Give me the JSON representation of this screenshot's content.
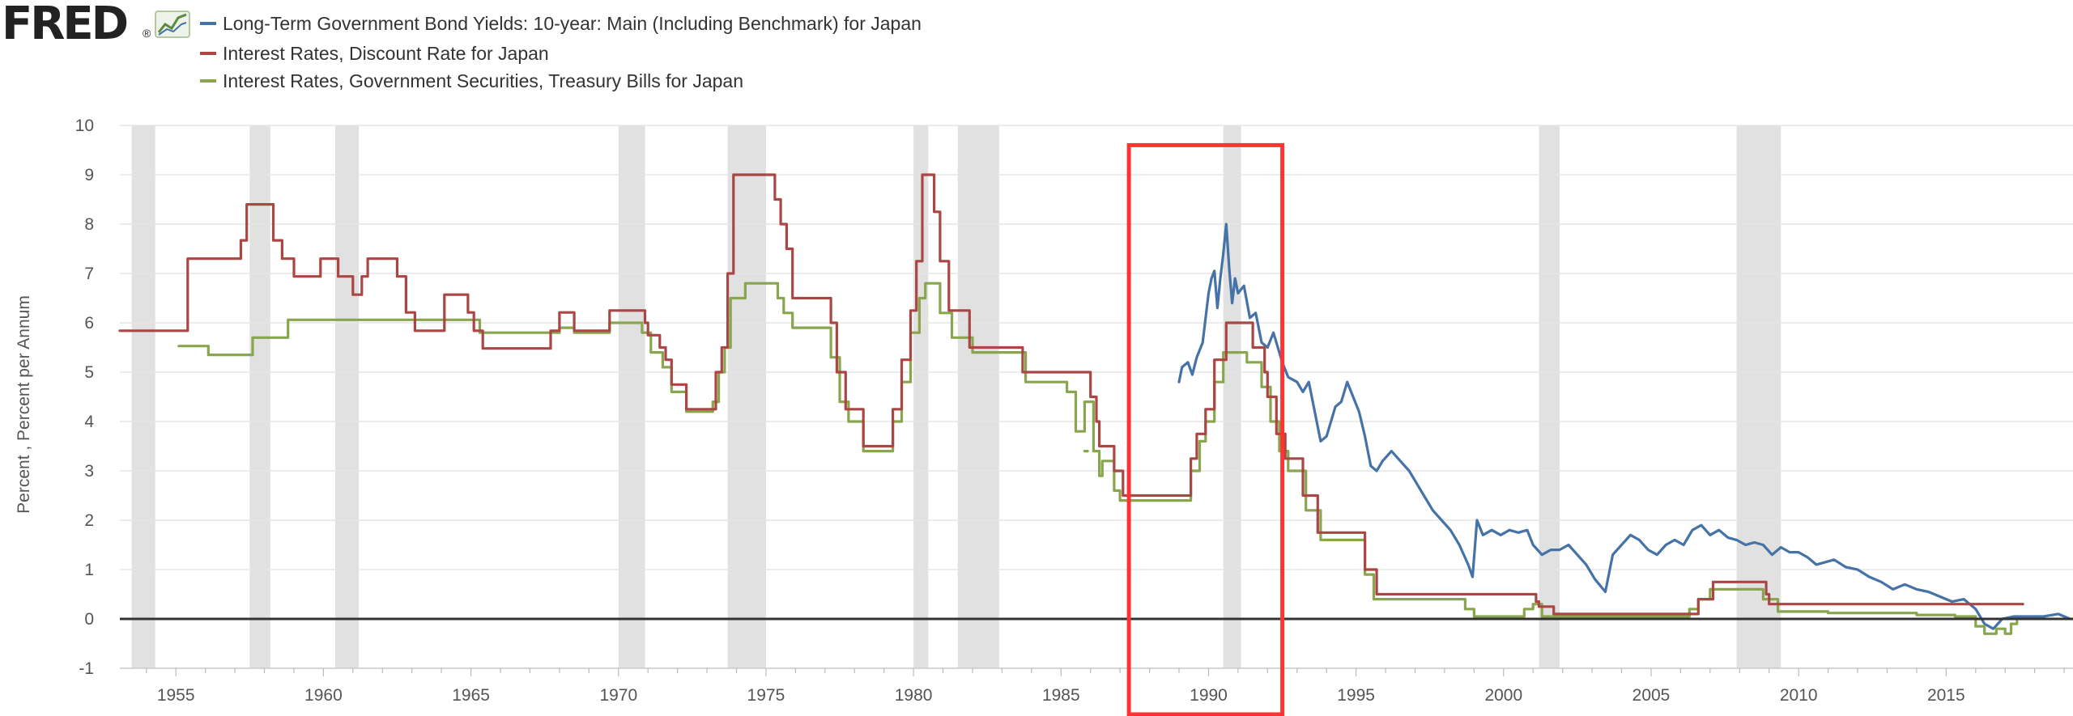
{
  "logo": {
    "text": "FRED",
    "trademark": "®"
  },
  "colors": {
    "series_blue": "#4572a7",
    "series_red": "#aa4643",
    "series_green": "#89a54e",
    "recession_band": "#e1e1e1",
    "gridline": "#e6e6e6",
    "zero_line": "#333333",
    "highlight_box": "#ff3333",
    "logo_dark": "#222222"
  },
  "chart_data": {
    "type": "line",
    "source": "FRED",
    "ylabel": "Percent , Percent per Annum",
    "xlabel": "",
    "ylim": [
      -1,
      10
    ],
    "yticks": [
      -1,
      0,
      1,
      2,
      3,
      4,
      5,
      6,
      7,
      8,
      9,
      10
    ],
    "xlim": [
      1953.1,
      2019.3
    ],
    "xticks": [
      1955,
      1960,
      1965,
      1970,
      1975,
      1980,
      1985,
      1990,
      1995,
      2000,
      2005,
      2010,
      2015
    ],
    "grid": true,
    "legend_position": "top-left",
    "zero_line": true,
    "highlight_box": {
      "x": [
        1987.3,
        1992.5
      ],
      "y": [
        -1,
        9.6
      ]
    },
    "recessions": [
      [
        1953.5,
        1954.3
      ],
      [
        1957.5,
        1958.2
      ],
      [
        1960.4,
        1961.2
      ],
      [
        1970.0,
        1970.9
      ],
      [
        1973.7,
        1975.0
      ],
      [
        1980.0,
        1980.5
      ],
      [
        1981.5,
        1982.9
      ],
      [
        1990.5,
        1991.1
      ],
      [
        2001.2,
        2001.9
      ],
      [
        2007.9,
        2009.4
      ]
    ],
    "series": [
      {
        "name": "Long-Term Government Bond Yields: 10-year: Main (Including Benchmark) for Japan",
        "color": "#4572a7",
        "shape": "linear",
        "points": [
          [
            1989.0,
            4.8
          ],
          [
            1989.1,
            5.1
          ],
          [
            1989.3,
            5.2
          ],
          [
            1989.45,
            4.95
          ],
          [
            1989.6,
            5.3
          ],
          [
            1989.8,
            5.6
          ],
          [
            1990.0,
            6.6
          ],
          [
            1990.1,
            6.9
          ],
          [
            1990.2,
            7.05
          ],
          [
            1990.3,
            6.3
          ],
          [
            1990.4,
            6.9
          ],
          [
            1990.5,
            7.4
          ],
          [
            1990.6,
            8.0
          ],
          [
            1990.7,
            7.1
          ],
          [
            1990.8,
            6.4
          ],
          [
            1990.9,
            6.9
          ],
          [
            1991.0,
            6.6
          ],
          [
            1991.2,
            6.75
          ],
          [
            1991.4,
            6.1
          ],
          [
            1991.6,
            6.2
          ],
          [
            1991.8,
            5.6
          ],
          [
            1992.0,
            5.5
          ],
          [
            1992.2,
            5.8
          ],
          [
            1992.5,
            5.2
          ],
          [
            1992.7,
            4.9
          ],
          [
            1993.0,
            4.8
          ],
          [
            1993.2,
            4.6
          ],
          [
            1993.4,
            4.8
          ],
          [
            1993.6,
            4.2
          ],
          [
            1993.8,
            3.6
          ],
          [
            1994.0,
            3.7
          ],
          [
            1994.3,
            4.3
          ],
          [
            1994.5,
            4.4
          ],
          [
            1994.7,
            4.8
          ],
          [
            1994.9,
            4.5
          ],
          [
            1995.1,
            4.2
          ],
          [
            1995.3,
            3.7
          ],
          [
            1995.5,
            3.1
          ],
          [
            1995.7,
            3.0
          ],
          [
            1995.9,
            3.2
          ],
          [
            1996.2,
            3.4
          ],
          [
            1996.5,
            3.2
          ],
          [
            1996.8,
            3.0
          ],
          [
            1997.0,
            2.8
          ],
          [
            1997.3,
            2.5
          ],
          [
            1997.6,
            2.2
          ],
          [
            1997.9,
            2.0
          ],
          [
            1998.2,
            1.8
          ],
          [
            1998.5,
            1.5
          ],
          [
            1998.8,
            1.1
          ],
          [
            1998.95,
            0.85
          ],
          [
            1999.1,
            2.0
          ],
          [
            1999.3,
            1.7
          ],
          [
            1999.6,
            1.8
          ],
          [
            1999.9,
            1.7
          ],
          [
            2000.2,
            1.8
          ],
          [
            2000.5,
            1.75
          ],
          [
            2000.8,
            1.8
          ],
          [
            2001.0,
            1.5
          ],
          [
            2001.3,
            1.3
          ],
          [
            2001.6,
            1.4
          ],
          [
            2001.9,
            1.4
          ],
          [
            2002.2,
            1.5
          ],
          [
            2002.5,
            1.3
          ],
          [
            2002.8,
            1.1
          ],
          [
            2003.1,
            0.8
          ],
          [
            2003.45,
            0.55
          ],
          [
            2003.7,
            1.3
          ],
          [
            2004.0,
            1.5
          ],
          [
            2004.3,
            1.7
          ],
          [
            2004.6,
            1.6
          ],
          [
            2004.9,
            1.4
          ],
          [
            2005.2,
            1.3
          ],
          [
            2005.5,
            1.5
          ],
          [
            2005.8,
            1.6
          ],
          [
            2006.1,
            1.5
          ],
          [
            2006.4,
            1.8
          ],
          [
            2006.7,
            1.9
          ],
          [
            2007.0,
            1.7
          ],
          [
            2007.3,
            1.8
          ],
          [
            2007.6,
            1.65
          ],
          [
            2007.9,
            1.6
          ],
          [
            2008.2,
            1.5
          ],
          [
            2008.5,
            1.55
          ],
          [
            2008.8,
            1.5
          ],
          [
            2009.1,
            1.3
          ],
          [
            2009.4,
            1.45
          ],
          [
            2009.7,
            1.35
          ],
          [
            2010.0,
            1.35
          ],
          [
            2010.3,
            1.25
          ],
          [
            2010.6,
            1.1
          ],
          [
            2010.9,
            1.15
          ],
          [
            2011.2,
            1.2
          ],
          [
            2011.6,
            1.05
          ],
          [
            2012.0,
            1.0
          ],
          [
            2012.4,
            0.85
          ],
          [
            2012.8,
            0.75
          ],
          [
            2013.2,
            0.6
          ],
          [
            2013.6,
            0.7
          ],
          [
            2014.0,
            0.6
          ],
          [
            2014.4,
            0.55
          ],
          [
            2014.8,
            0.45
          ],
          [
            2015.2,
            0.35
          ],
          [
            2015.6,
            0.4
          ],
          [
            2016.0,
            0.2
          ],
          [
            2016.3,
            -0.1
          ],
          [
            2016.6,
            -0.2
          ],
          [
            2016.9,
            0.0
          ],
          [
            2017.3,
            0.05
          ],
          [
            2017.8,
            0.05
          ],
          [
            2018.3,
            0.05
          ],
          [
            2018.8,
            0.1
          ],
          [
            2019.2,
            0.0
          ]
        ]
      },
      {
        "name": "Interest Rates, Discount Rate for Japan",
        "color": "#aa4643",
        "shape": "step",
        "points": [
          [
            1953.1,
            5.84
          ],
          [
            1955.4,
            7.3
          ],
          [
            1957.2,
            7.67
          ],
          [
            1957.4,
            8.4
          ],
          [
            1958.3,
            7.67
          ],
          [
            1958.6,
            7.3
          ],
          [
            1959.0,
            6.94
          ],
          [
            1959.9,
            7.3
          ],
          [
            1960.5,
            6.94
          ],
          [
            1961.0,
            6.57
          ],
          [
            1961.3,
            6.94
          ],
          [
            1961.5,
            7.3
          ],
          [
            1962.5,
            6.94
          ],
          [
            1962.8,
            6.21
          ],
          [
            1963.1,
            5.84
          ],
          [
            1963.6,
            5.84
          ],
          [
            1964.1,
            6.57
          ],
          [
            1964.9,
            6.21
          ],
          [
            1965.1,
            5.84
          ],
          [
            1965.4,
            5.48
          ],
          [
            1967.7,
            5.84
          ],
          [
            1968.0,
            6.21
          ],
          [
            1968.5,
            5.84
          ],
          [
            1969.7,
            6.25
          ],
          [
            1970.9,
            6.0
          ],
          [
            1971.0,
            5.75
          ],
          [
            1971.4,
            5.5
          ],
          [
            1971.6,
            5.25
          ],
          [
            1971.8,
            4.75
          ],
          [
            1972.3,
            4.25
          ],
          [
            1973.2,
            4.25
          ],
          [
            1973.3,
            5.0
          ],
          [
            1973.5,
            5.5
          ],
          [
            1973.7,
            7.0
          ],
          [
            1973.9,
            9.0
          ],
          [
            1975.3,
            8.5
          ],
          [
            1975.5,
            8.0
          ],
          [
            1975.7,
            7.5
          ],
          [
            1975.9,
            6.5
          ],
          [
            1977.2,
            6.0
          ],
          [
            1977.4,
            5.0
          ],
          [
            1977.7,
            4.25
          ],
          [
            1978.3,
            3.5
          ],
          [
            1979.3,
            4.25
          ],
          [
            1979.6,
            5.25
          ],
          [
            1979.9,
            6.25
          ],
          [
            1980.1,
            7.25
          ],
          [
            1980.3,
            9.0
          ],
          [
            1980.7,
            8.25
          ],
          [
            1980.9,
            7.25
          ],
          [
            1981.2,
            6.25
          ],
          [
            1981.9,
            5.5
          ],
          [
            1983.7,
            5.0
          ],
          [
            1986.0,
            4.5
          ],
          [
            1986.2,
            4.0
          ],
          [
            1986.3,
            3.5
          ],
          [
            1986.8,
            3.0
          ],
          [
            1987.1,
            2.5
          ],
          [
            1989.4,
            3.25
          ],
          [
            1989.6,
            3.75
          ],
          [
            1989.9,
            4.25
          ],
          [
            1990.2,
            5.25
          ],
          [
            1990.6,
            6.0
          ],
          [
            1991.5,
            5.5
          ],
          [
            1991.9,
            5.0
          ],
          [
            1992.0,
            4.5
          ],
          [
            1992.3,
            3.75
          ],
          [
            1992.6,
            3.25
          ],
          [
            1993.2,
            2.5
          ],
          [
            1993.7,
            1.75
          ],
          [
            1995.3,
            1.0
          ],
          [
            1995.7,
            0.5
          ],
          [
            2001.1,
            0.35
          ],
          [
            2001.2,
            0.25
          ],
          [
            2001.7,
            0.1
          ],
          [
            2006.6,
            0.4
          ],
          [
            2007.1,
            0.75
          ],
          [
            2008.9,
            0.5
          ],
          [
            2009.0,
            0.3
          ],
          [
            2017.6,
            0.3
          ]
        ]
      },
      {
        "name": "Interest Rates, Government Securities, Treasury Bills for Japan",
        "color": "#89a54e",
        "shape": "step",
        "segments": [
          [
            [
              1955.1,
              5.53
            ],
            [
              1956.1,
              5.35
            ],
            [
              1957.6,
              5.7
            ],
            [
              1958.8,
              6.06
            ],
            [
              1965.3,
              5.8
            ],
            [
              1967.5,
              5.8
            ],
            [
              1968.0,
              5.9
            ],
            [
              1968.5,
              5.8
            ],
            [
              1969.7,
              6.0
            ],
            [
              1970.8,
              5.8
            ],
            [
              1971.1,
              5.4
            ],
            [
              1971.5,
              5.1
            ],
            [
              1971.8,
              4.6
            ],
            [
              1972.3,
              4.2
            ],
            [
              1973.2,
              4.4
            ],
            [
              1973.4,
              5.0
            ],
            [
              1973.6,
              5.5
            ],
            [
              1973.8,
              6.5
            ],
            [
              1974.3,
              6.8
            ],
            [
              1975.4,
              6.5
            ],
            [
              1975.6,
              6.2
            ],
            [
              1975.9,
              5.9
            ],
            [
              1977.2,
              5.3
            ],
            [
              1977.5,
              4.4
            ],
            [
              1977.8,
              4.0
            ],
            [
              1978.3,
              3.4
            ],
            [
              1979.3,
              4.0
            ],
            [
              1979.6,
              4.8
            ],
            [
              1979.9,
              5.8
            ],
            [
              1980.2,
              6.5
            ],
            [
              1980.4,
              6.8
            ],
            [
              1980.9,
              6.2
            ],
            [
              1981.3,
              5.7
            ],
            [
              1982.0,
              5.4
            ],
            [
              1983.8,
              4.8
            ],
            [
              1985.2,
              4.6
            ],
            [
              1985.5,
              3.8
            ],
            [
              1985.8,
              4.4
            ],
            [
              1986.1,
              3.4
            ],
            [
              1986.3,
              2.9
            ],
            [
              1986.4,
              3.2
            ],
            [
              1986.8,
              2.6
            ],
            [
              1987.0,
              2.4
            ],
            [
              1989.4,
              3.0
            ],
            [
              1989.7,
              3.6
            ],
            [
              1989.9,
              4.0
            ],
            [
              1990.2,
              4.8
            ],
            [
              1990.5,
              5.4
            ],
            [
              1991.3,
              5.2
            ],
            [
              1991.8,
              4.7
            ],
            [
              1992.1,
              4.0
            ],
            [
              1992.4,
              3.4
            ],
            [
              1992.7,
              3.0
            ],
            [
              1993.3,
              2.2
            ],
            [
              1993.8,
              1.6
            ],
            [
              1995.3,
              0.9
            ],
            [
              1995.6,
              0.4
            ],
            [
              1998.7,
              0.2
            ],
            [
              1999.0,
              0.05
            ],
            [
              2000.0,
              0.05
            ],
            [
              2000.7,
              0.2
            ],
            [
              2001.0,
              0.3
            ],
            [
              2001.3,
              0.05
            ],
            [
              2006.3,
              0.2
            ],
            [
              2006.6,
              0.4
            ],
            [
              2007.0,
              0.6
            ],
            [
              2008.8,
              0.4
            ],
            [
              2009.3,
              0.15
            ],
            [
              2011.0,
              0.12
            ],
            [
              2014.0,
              0.08
            ],
            [
              2015.3,
              0.05
            ],
            [
              2016.0,
              -0.15
            ],
            [
              2016.3,
              -0.3
            ],
            [
              2016.7,
              -0.2
            ],
            [
              2017.0,
              -0.3
            ],
            [
              2017.2,
              -0.1
            ],
            [
              2017.4,
              -0.05
            ]
          ],
          [
            [
              1985.8,
              3.4
            ],
            [
              1985.9,
              3.4
            ]
          ]
        ]
      }
    ]
  }
}
